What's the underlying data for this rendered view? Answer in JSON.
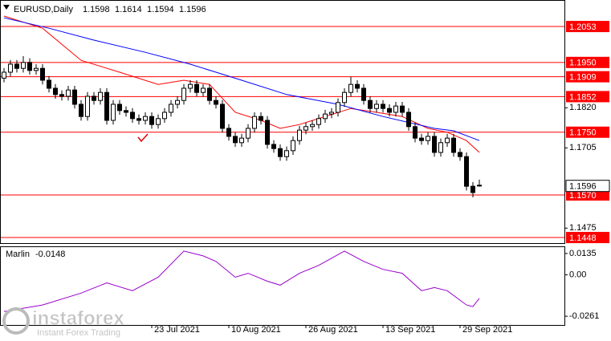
{
  "chart_data": [
    {
      "type": "candlestick",
      "title": "EURUSD,Daily",
      "open": [
        1.1905,
        1.1922,
        1.1945,
        1.1933,
        1.195,
        1.1927,
        1.1933,
        1.1899,
        1.1876,
        1.1858,
        1.1853,
        1.1871,
        1.183,
        1.1795,
        1.1853,
        1.1841,
        1.1864,
        1.1784,
        1.183,
        1.1812,
        1.1807,
        1.1789,
        1.1784,
        1.1795,
        1.1772,
        1.1789,
        1.1807,
        1.183,
        1.1841,
        1.1876,
        1.1887,
        1.1864,
        1.1876,
        1.1841,
        1.183,
        1.1761,
        1.1738,
        1.172,
        1.1733,
        1.1761,
        1.1795,
        1.1784,
        1.1715,
        1.1703,
        1.168,
        1.1697,
        1.1726,
        1.1756,
        1.1766,
        1.1772,
        1.1789,
        1.1802,
        1.1807,
        1.1835,
        1.1864,
        1.1887,
        1.1876,
        1.1841,
        1.1818,
        1.183,
        1.1818,
        1.1807,
        1.1825,
        1.1807,
        1.1766,
        1.1733,
        1.1726,
        1.1738,
        1.1692,
        1.172,
        1.1733,
        1.1692,
        1.168,
        1.1595,
        1.1598
      ],
      "high": [
        1.1934,
        1.1957,
        1.1957,
        1.1968,
        1.1962,
        1.1945,
        1.1945,
        1.1911,
        1.1888,
        1.187,
        1.1883,
        1.1883,
        1.1842,
        1.1865,
        1.1865,
        1.1876,
        1.1876,
        1.1842,
        1.1842,
        1.1824,
        1.1819,
        1.1801,
        1.1807,
        1.1807,
        1.1801,
        1.1819,
        1.1842,
        1.1853,
        1.1888,
        1.1899,
        1.1899,
        1.1888,
        1.1888,
        1.1853,
        1.1842,
        1.1773,
        1.175,
        1.1745,
        1.1773,
        1.1807,
        1.1807,
        1.1796,
        1.1727,
        1.1715,
        1.1709,
        1.1738,
        1.1768,
        1.1778,
        1.1784,
        1.1801,
        1.1814,
        1.1819,
        1.1847,
        1.1876,
        1.1909,
        1.1899,
        1.1888,
        1.1853,
        1.1842,
        1.1842,
        1.183,
        1.1837,
        1.1837,
        1.1819,
        1.1778,
        1.1745,
        1.175,
        1.175,
        1.1732,
        1.1745,
        1.1745,
        1.1704,
        1.1692,
        1.1607,
        1.1614
      ],
      "low": [
        1.1893,
        1.191,
        1.1921,
        1.1921,
        1.1915,
        1.1915,
        1.1887,
        1.1864,
        1.1846,
        1.1841,
        1.1841,
        1.1818,
        1.1783,
        1.1783,
        1.1829,
        1.1829,
        1.1772,
        1.1772,
        1.18,
        1.1795,
        1.1777,
        1.1772,
        1.1772,
        1.176,
        1.176,
        1.1777,
        1.1795,
        1.1818,
        1.1829,
        1.1864,
        1.1852,
        1.1852,
        1.1829,
        1.1818,
        1.1749,
        1.1726,
        1.1708,
        1.1708,
        1.1721,
        1.1749,
        1.1772,
        1.1703,
        1.1691,
        1.1668,
        1.1668,
        1.1685,
        1.1714,
        1.1744,
        1.1754,
        1.176,
        1.1777,
        1.179,
        1.1795,
        1.1823,
        1.1852,
        1.1864,
        1.1829,
        1.1806,
        1.1806,
        1.1806,
        1.1795,
        1.1795,
        1.1795,
        1.1754,
        1.1721,
        1.1714,
        1.1714,
        1.168,
        1.168,
        1.1708,
        1.168,
        1.1668,
        1.1583,
        1.1563,
        1.1594
      ],
      "close": [
        1.1922,
        1.1945,
        1.1933,
        1.195,
        1.1927,
        1.1933,
        1.1899,
        1.1876,
        1.1858,
        1.1853,
        1.1871,
        1.183,
        1.1795,
        1.1853,
        1.1841,
        1.1864,
        1.1784,
        1.183,
        1.1812,
        1.1807,
        1.1789,
        1.1784,
        1.1795,
        1.1772,
        1.1789,
        1.1807,
        1.183,
        1.1841,
        1.1876,
        1.1887,
        1.1864,
        1.1876,
        1.1841,
        1.183,
        1.1761,
        1.1738,
        1.172,
        1.1733,
        1.1761,
        1.1795,
        1.1784,
        1.1715,
        1.1703,
        1.168,
        1.1697,
        1.1726,
        1.1756,
        1.1766,
        1.1772,
        1.1789,
        1.1802,
        1.1807,
        1.1835,
        1.1864,
        1.1887,
        1.1876,
        1.1841,
        1.1818,
        1.183,
        1.1818,
        1.1807,
        1.1825,
        1.1807,
        1.1766,
        1.1733,
        1.1726,
        1.1738,
        1.1692,
        1.172,
        1.1733,
        1.1692,
        1.168,
        1.1595,
        1.1577,
        1.1596
      ],
      "up_color": "#ffffff",
      "down_color": "#000000",
      "overlays": [
        {
          "color": "#ff0000",
          "x": [
            0,
            6,
            12,
            18,
            24,
            28,
            32,
            36,
            40,
            43,
            46,
            50,
            54,
            58,
            62,
            66,
            69,
            72,
            74
          ],
          "values": [
            1.2083,
            1.2048,
            1.1956,
            1.1922,
            1.1887,
            1.1899,
            1.1887,
            1.1807,
            1.1784,
            1.1761,
            1.1772,
            1.1795,
            1.1818,
            1.1807,
            1.1795,
            1.1761,
            1.175,
            1.1726,
            1.1692
          ]
        },
        {
          "color": "#0000ff",
          "x": [
            0,
            7,
            14,
            22,
            29,
            37,
            44,
            52,
            59,
            67,
            70,
            74
          ],
          "values": [
            1.2078,
            1.2048,
            1.2014,
            1.1979,
            1.1945,
            1.1899,
            1.1858,
            1.183,
            1.1795,
            1.1761,
            1.1754,
            1.1726
          ]
        }
      ],
      "levels": [
        1.2053,
        {
          "value": 1.195,
          "label": "1.1950"
        },
        1.1909,
        1.1852,
        {
          "value": 1.175,
          "label": "1.1750"
        },
        {
          "value": 1.157,
          "label": "1.1570"
        },
        1.1448
      ],
      "level_color": "#ff0000",
      "xlim": [
        -0.625,
        87.25
      ],
      "ylim": [
        1.1432,
        1.2129
      ],
      "yticks": [
        {
          "value": 1.182,
          "label": "1.1820"
        },
        1.1705,
        1.1475
      ]
    },
    {
      "type": "line",
      "title": "Marlin",
      "color": "#9900cc",
      "x": [
        0,
        6,
        12,
        16,
        20,
        24,
        28,
        31,
        33,
        36,
        38,
        41,
        43,
        46,
        49,
        53,
        56,
        59,
        62,
        65,
        67,
        69,
        72,
        73,
        74
      ],
      "values": [
        -0.0231,
        -0.019,
        -0.0115,
        -0.005,
        -0.01,
        -0.0015,
        0.015,
        0.012,
        0.0085,
        -0.0015,
        0.001,
        -0.004,
        -0.0065,
        0.001,
        0.006,
        0.015,
        0.0085,
        0.0035,
        0.001,
        -0.01,
        -0.008,
        -0.01,
        -0.019,
        -0.02,
        -0.0148
      ],
      "xlim": [
        -0.625,
        87.25
      ],
      "ylim": [
        -0.0316,
        0.0175
      ],
      "yticks": [
        0.0135,
        {
          "value": 0,
          "label": "0.00"
        },
        -0.0261
      ],
      "xticks": [
        {
          "value": 23,
          "label": "23 Jul 2021"
        },
        {
          "value": 35,
          "label": "10 Aug 2021"
        },
        {
          "value": 47,
          "label": "26 Aug 2021"
        },
        {
          "value": 59,
          "label": "13 Sep 2021"
        },
        {
          "value": 71,
          "label": "29 Sep 2021"
        }
      ]
    }
  ],
  "watermark": {
    "name": "instaforex",
    "tagline": "Instant Forex Trading"
  }
}
